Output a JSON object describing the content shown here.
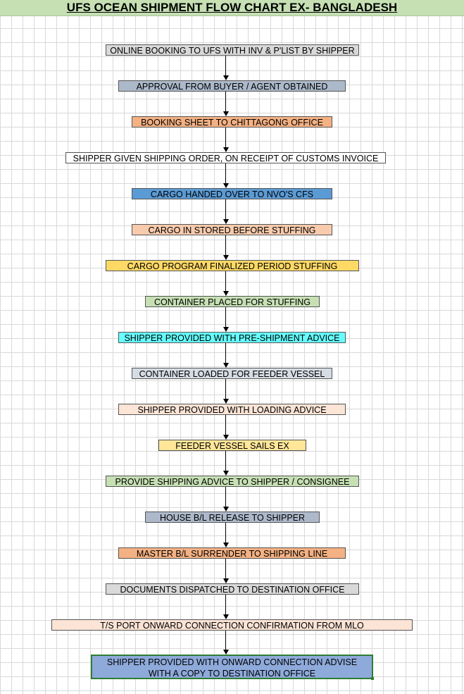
{
  "title": "UFS OCEAN SHIPMENT FLOW CHART EX- BANGLADESH",
  "steps": [
    {
      "label": "ONLINE BOOKING TO UFS WITH INV & P'LIST BY SHIPPER",
      "color": "#d9d9d9"
    },
    {
      "label": "APPROVAL FROM BUYER / AGENT OBTAINED",
      "color": "#acb9ca"
    },
    {
      "label": "BOOKING SHEET TO CHITTAGONG OFFICE",
      "color": "#f4b183"
    },
    {
      "label": "SHIPPER GIVEN SHIPPING ORDER, ON RECEIPT OF CUSTOMS INVOICE",
      "color": "#ffffff"
    },
    {
      "label": "CARGO HANDED OVER TO NVO'S CFS",
      "color": "#5b9bd5"
    },
    {
      "label": "CARGO IN STORED BEFORE STUFFING",
      "color": "#f8cbad"
    },
    {
      "label": "CARGO PROGRAM FINALIZED PERIOD STUFFING",
      "color": "#ffd966"
    },
    {
      "label": "CONTAINER PLACED FOR STUFFING",
      "color": "#c6e0b4"
    },
    {
      "label": "SHIPPER PROVIDED WITH PRE-SHIPMENT ADVICE",
      "color": "#66ffff"
    },
    {
      "label": "CONTAINER LOADED FOR FEEDER VESSEL",
      "color": "#d6dce4"
    },
    {
      "label": "SHIPPER PROVIDED WITH LOADING ADVICE",
      "color": "#fce4d6"
    },
    {
      "label": "FEEDER VESSEL SAILS EX",
      "color": "#ffe699"
    },
    {
      "label": "PROVIDE SHIPPING ADVICE TO SHIPPER / CONSIGNEE",
      "color": "#c6e0b4"
    },
    {
      "label": "HOUSE B/L RELEASE TO SHIPPER",
      "color": "#adb9ca"
    },
    {
      "label": "MASTER B/L SURRENDER TO SHIPPING LINE",
      "color": "#f4b183"
    },
    {
      "label": "DOCUMENTS DISPATCHED TO DESTINATION OFFICE",
      "color": "#d9d9d9"
    },
    {
      "label": "T/S PORT ONWARD CONNECTION  CONFIRMATION FROM MLO",
      "color": "#fce4d6"
    }
  ],
  "final_step": {
    "line1": "SHIPPER PROVIDED WITH ONWARD CONNECTION ADVISE",
    "line2": "WITH A COPY TO DESTINATION OFFICE",
    "color": "#8eaadb"
  }
}
